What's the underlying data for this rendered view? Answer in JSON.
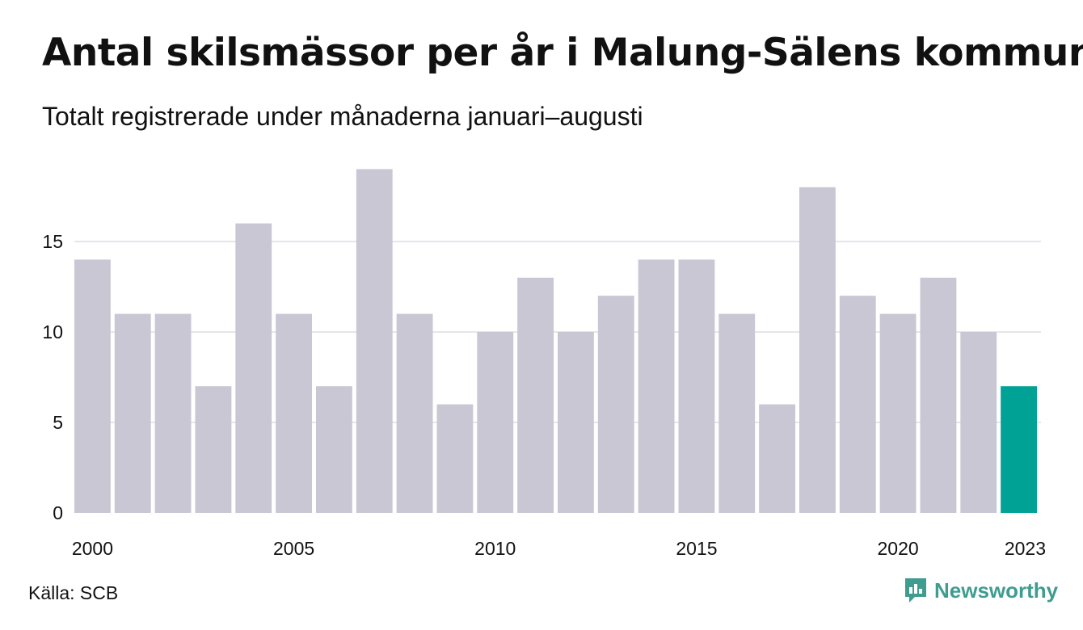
{
  "header": {
    "title": "Antal skilsmässor per år i Malung-Sälens kommun",
    "subtitle": "Totalt registrerade under månaderna januari–augusti"
  },
  "footer": {
    "source": "Källa: SCB",
    "brand": "Newsworthy",
    "brand_icon": "newsworthy-bar-chart-speech-bubble-icon"
  },
  "colors": {
    "bar": "#c8c7d3",
    "highlight": "#00a296",
    "grid": "#e6e6ea",
    "brand": "#3f9c8f"
  },
  "chart_data": {
    "type": "bar",
    "title": "Antal skilsmässor per år i Malung-Sälens kommun",
    "subtitle": "Totalt registrerade under månaderna januari–augusti",
    "xlabel": "",
    "ylabel": "",
    "categories": [
      2000,
      2001,
      2002,
      2003,
      2004,
      2005,
      2006,
      2007,
      2008,
      2009,
      2010,
      2011,
      2012,
      2013,
      2014,
      2015,
      2016,
      2017,
      2018,
      2019,
      2020,
      2021,
      2022,
      2023
    ],
    "values": [
      14,
      11,
      11,
      7,
      16,
      11,
      7,
      19,
      11,
      6,
      10,
      13,
      10,
      12,
      14,
      14,
      11,
      6,
      18,
      12,
      11,
      13,
      10,
      7
    ],
    "highlight_category": 2023,
    "x_tick_labels": [
      "2000",
      "2005",
      "2010",
      "2015",
      "2020",
      "2023"
    ],
    "y_ticks": [
      0,
      5,
      10,
      15
    ],
    "ylim": [
      0,
      19
    ],
    "grid": true,
    "legend": "none"
  }
}
